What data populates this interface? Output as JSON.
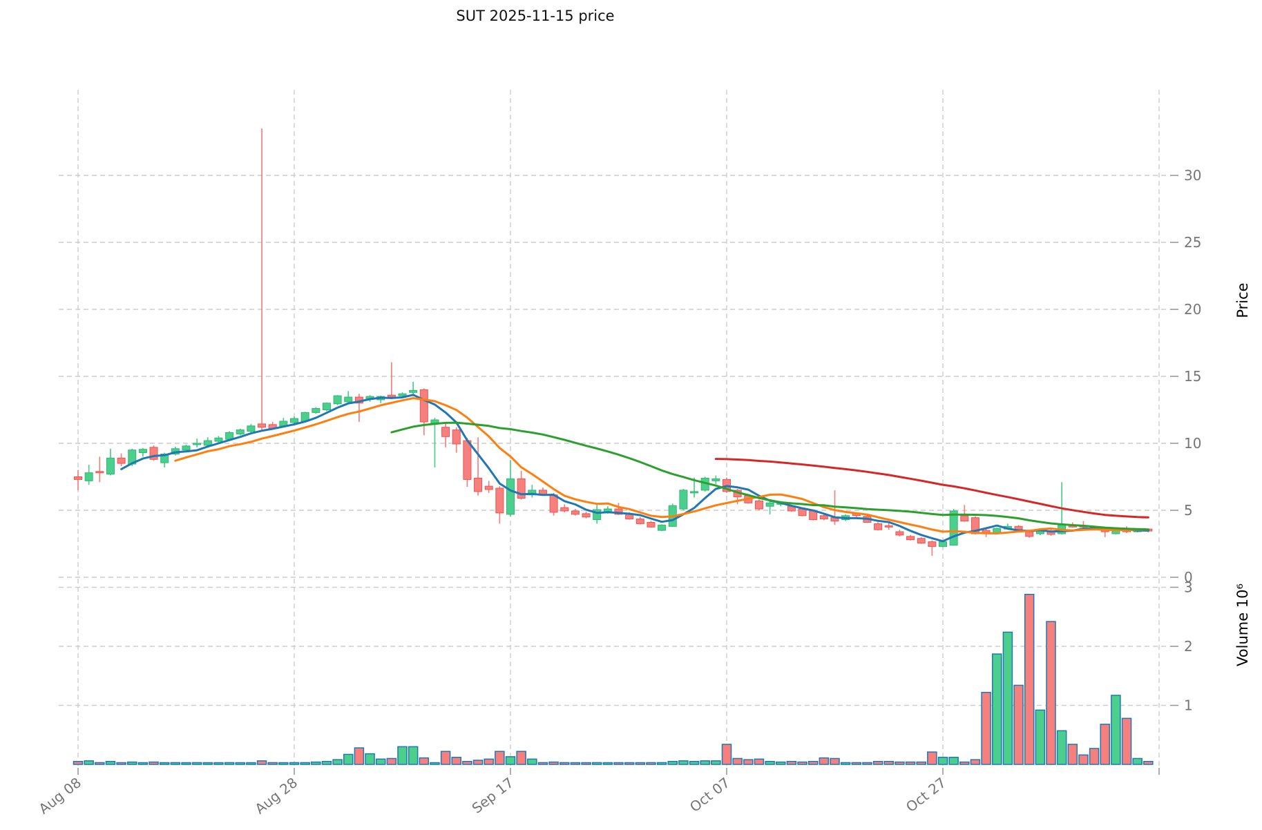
{
  "title": "SUT  2025-11-15  price",
  "chart_data": {
    "type": "candlestick",
    "title": "SUT  2025-11-15  price",
    "x_axis": {
      "tick_labels": [
        "Aug 08",
        "Aug 28",
        "Sep 17",
        "Oct 07",
        "Oct 27"
      ],
      "tick_day_indices": [
        0,
        20,
        40,
        60,
        80
      ],
      "gridline_day_indices": [
        0,
        20,
        40,
        60,
        80,
        100
      ]
    },
    "price_axis": {
      "label": "Price",
      "ticks": [
        0,
        5,
        10,
        15,
        20,
        25,
        30
      ],
      "range": [
        0,
        36
      ]
    },
    "volume_axis": {
      "label": "Volume  10⁶",
      "ticks": [
        1,
        2,
        3
      ],
      "unit": "millions",
      "range": [
        0,
        3.1
      ]
    },
    "legend_position": "none",
    "grid": "dashed",
    "colors": {
      "up_fill": "#4ccf8d",
      "up_stroke": "#2db873",
      "down_fill": "#f5807e",
      "down_stroke": "#ef5350",
      "volume_edge": "#1f77b4",
      "grid": "#cccccc",
      "tick_text": "#757575",
      "title_text": "#111111",
      "ma_colors": [
        "#1f77b4",
        "#ff7f0e",
        "#2ca02c",
        "#d62728"
      ]
    },
    "moving_averages": [
      {
        "name": "SMA5",
        "window": 5
      },
      {
        "name": "SMA10",
        "window": 10
      },
      {
        "name": "SMA30",
        "window": 30
      },
      {
        "name": "SMA60",
        "window": 60
      }
    ],
    "columns": [
      "date",
      "open",
      "high",
      "low",
      "close",
      "volume_millions"
    ],
    "ohlcv": [
      [
        "2025-08-08",
        7.5,
        8.0,
        6.5,
        7.3,
        0.05
      ],
      [
        "2025-08-09",
        7.2,
        8.4,
        6.9,
        7.8,
        0.06
      ],
      [
        "2025-08-10",
        7.9,
        9.0,
        7.1,
        7.85,
        0.03
      ],
      [
        "2025-08-11",
        7.7,
        9.6,
        7.6,
        8.9,
        0.05
      ],
      [
        "2025-08-12",
        8.9,
        9.25,
        8.3,
        8.5,
        0.02
      ],
      [
        "2025-08-13",
        8.45,
        9.6,
        8.3,
        9.5,
        0.04
      ],
      [
        "2025-08-14",
        9.3,
        9.65,
        9.0,
        9.55,
        0.02
      ],
      [
        "2025-08-15",
        9.7,
        9.85,
        8.7,
        8.8,
        0.04
      ],
      [
        "2025-08-16",
        8.55,
        9.3,
        8.2,
        9.2,
        0.02
      ],
      [
        "2025-08-17",
        9.2,
        9.75,
        9.1,
        9.6,
        0.03
      ],
      [
        "2025-08-18",
        9.5,
        9.9,
        9.4,
        9.8,
        0.02
      ],
      [
        "2025-08-19",
        9.9,
        10.35,
        9.7,
        10.0,
        0.03
      ],
      [
        "2025-08-20",
        9.85,
        10.45,
        9.7,
        10.2,
        0.02
      ],
      [
        "2025-08-21",
        10.15,
        10.55,
        10.0,
        10.4,
        0.02
      ],
      [
        "2025-08-22",
        10.3,
        10.9,
        10.2,
        10.8,
        0.03
      ],
      [
        "2025-08-23",
        10.7,
        11.1,
        10.6,
        11.0,
        0.02
      ],
      [
        "2025-08-24",
        10.9,
        11.45,
        10.8,
        11.3,
        0.02
      ],
      [
        "2025-08-25",
        11.45,
        33.5,
        10.95,
        11.2,
        0.06
      ],
      [
        "2025-08-26",
        11.4,
        11.6,
        11.0,
        11.1,
        0.03
      ],
      [
        "2025-08-27",
        11.3,
        11.9,
        11.2,
        11.65,
        0.02
      ],
      [
        "2025-08-28",
        11.55,
        12.0,
        11.45,
        11.85,
        0.03
      ],
      [
        "2025-08-29",
        11.65,
        12.35,
        11.6,
        12.3,
        0.03
      ],
      [
        "2025-08-30",
        12.3,
        12.7,
        12.2,
        12.6,
        0.04
      ],
      [
        "2025-08-31",
        12.5,
        13.05,
        12.4,
        13.0,
        0.05
      ],
      [
        "2025-09-01",
        12.95,
        13.6,
        12.85,
        13.55,
        0.08
      ],
      [
        "2025-09-02",
        13.1,
        13.9,
        13.0,
        13.45,
        0.17
      ],
      [
        "2025-09-03",
        13.45,
        13.7,
        11.6,
        13.0,
        0.28
      ],
      [
        "2025-09-04",
        13.3,
        13.6,
        13.1,
        13.5,
        0.18
      ],
      [
        "2025-09-05",
        13.25,
        13.55,
        13.0,
        13.5,
        0.09
      ],
      [
        "2025-09-06",
        13.6,
        16.05,
        13.3,
        13.45,
        0.1
      ],
      [
        "2025-09-07",
        13.55,
        13.8,
        13.4,
        13.7,
        0.3
      ],
      [
        "2025-09-08",
        13.8,
        14.6,
        13.5,
        13.95,
        0.3
      ],
      [
        "2025-09-09",
        14.0,
        14.1,
        10.6,
        11.6,
        0.11
      ],
      [
        "2025-09-10",
        11.5,
        11.9,
        8.2,
        11.75,
        0.02
      ],
      [
        "2025-09-11",
        11.2,
        11.5,
        9.7,
        10.5,
        0.22
      ],
      [
        "2025-09-12",
        11.0,
        11.2,
        9.3,
        9.95,
        0.12
      ],
      [
        "2025-09-13",
        10.2,
        10.4,
        6.75,
        7.3,
        0.05
      ],
      [
        "2025-09-14",
        7.4,
        10.45,
        6.1,
        6.4,
        0.07
      ],
      [
        "2025-09-15",
        6.8,
        7.2,
        6.3,
        6.55,
        0.09
      ],
      [
        "2025-09-16",
        6.65,
        6.8,
        4.0,
        4.8,
        0.22
      ],
      [
        "2025-09-17",
        4.7,
        8.75,
        4.55,
        7.35,
        0.13
      ],
      [
        "2025-09-18",
        7.35,
        7.95,
        5.8,
        5.9,
        0.22
      ],
      [
        "2025-09-19",
        6.15,
        6.9,
        5.95,
        6.5,
        0.09
      ],
      [
        "2025-09-20",
        6.5,
        6.7,
        6.1,
        6.2,
        0.03
      ],
      [
        "2025-09-21",
        6.15,
        6.3,
        4.6,
        4.85,
        0.04
      ],
      [
        "2025-09-22",
        5.2,
        5.45,
        4.85,
        4.95,
        0.03
      ],
      [
        "2025-09-23",
        4.95,
        5.1,
        4.6,
        4.7,
        0.02
      ],
      [
        "2025-09-24",
        4.75,
        4.9,
        4.4,
        4.5,
        0.02
      ],
      [
        "2025-09-25",
        4.3,
        5.55,
        4.0,
        5.05,
        0.03
      ],
      [
        "2025-09-26",
        4.85,
        5.3,
        4.75,
        5.1,
        0.02
      ],
      [
        "2025-09-27",
        5.1,
        5.55,
        4.65,
        4.7,
        0.02
      ],
      [
        "2025-09-28",
        4.7,
        4.85,
        4.3,
        4.35,
        0.02
      ],
      [
        "2025-09-29",
        4.35,
        4.5,
        3.95,
        4.0,
        0.02
      ],
      [
        "2025-09-30",
        4.1,
        4.2,
        3.7,
        3.75,
        0.03
      ],
      [
        "2025-10-01",
        3.5,
        3.95,
        3.45,
        3.9,
        0.03
      ],
      [
        "2025-10-02",
        3.8,
        5.5,
        3.75,
        5.35,
        0.05
      ],
      [
        "2025-10-03",
        5.1,
        6.6,
        5.0,
        6.5,
        0.06
      ],
      [
        "2025-10-04",
        6.3,
        7.45,
        5.95,
        6.4,
        0.05
      ],
      [
        "2025-10-05",
        6.5,
        7.5,
        6.4,
        7.4,
        0.06
      ],
      [
        "2025-10-06",
        7.2,
        7.6,
        6.95,
        7.35,
        0.06
      ],
      [
        "2025-10-07",
        7.3,
        7.45,
        6.3,
        6.4,
        0.34
      ],
      [
        "2025-10-08",
        6.5,
        6.6,
        5.45,
        6.0,
        0.1
      ],
      [
        "2025-10-09",
        6.1,
        6.2,
        5.5,
        5.55,
        0.08
      ],
      [
        "2025-10-10",
        5.7,
        5.8,
        5.0,
        5.1,
        0.09
      ],
      [
        "2025-10-11",
        5.3,
        5.7,
        4.7,
        5.55,
        0.05
      ],
      [
        "2025-10-12",
        5.45,
        5.65,
        5.3,
        5.55,
        0.04
      ],
      [
        "2025-10-13",
        5.3,
        5.4,
        4.9,
        4.95,
        0.05
      ],
      [
        "2025-10-14",
        5.1,
        5.2,
        4.55,
        4.6,
        0.04
      ],
      [
        "2025-10-15",
        4.95,
        5.0,
        4.25,
        4.3,
        0.05
      ],
      [
        "2025-10-16",
        4.6,
        4.7,
        4.25,
        4.35,
        0.11
      ],
      [
        "2025-10-17",
        4.45,
        6.5,
        3.9,
        4.2,
        0.1
      ],
      [
        "2025-10-18",
        4.3,
        4.7,
        4.2,
        4.6,
        0.03
      ],
      [
        "2025-10-19",
        4.75,
        4.85,
        4.5,
        4.6,
        0.03
      ],
      [
        "2025-10-20",
        4.55,
        4.65,
        4.05,
        4.1,
        0.03
      ],
      [
        "2025-10-21",
        4.0,
        4.1,
        3.5,
        3.55,
        0.05
      ],
      [
        "2025-10-22",
        3.85,
        4.05,
        3.55,
        3.75,
        0.05
      ],
      [
        "2025-10-23",
        3.4,
        3.55,
        3.05,
        3.15,
        0.04
      ],
      [
        "2025-10-24",
        3.05,
        3.15,
        2.75,
        2.8,
        0.04
      ],
      [
        "2025-10-25",
        2.9,
        3.0,
        2.5,
        2.55,
        0.04
      ],
      [
        "2025-10-26",
        2.65,
        2.75,
        1.6,
        2.3,
        0.21
      ],
      [
        "2025-10-27",
        2.3,
        2.75,
        2.25,
        2.65,
        0.12
      ],
      [
        "2025-10-28",
        2.4,
        5.1,
        2.35,
        4.95,
        0.12
      ],
      [
        "2025-10-29",
        4.6,
        5.4,
        4.15,
        4.2,
        0.04
      ],
      [
        "2025-10-30",
        4.45,
        4.55,
        3.2,
        3.25,
        0.08
      ],
      [
        "2025-10-31",
        3.5,
        3.6,
        3.0,
        3.25,
        1.22
      ],
      [
        "2025-11-01",
        3.3,
        3.7,
        3.2,
        3.65,
        1.87
      ],
      [
        "2025-11-02",
        3.6,
        4.0,
        3.55,
        3.8,
        2.24
      ],
      [
        "2025-11-03",
        3.8,
        3.9,
        3.45,
        3.55,
        1.34
      ],
      [
        "2025-11-04",
        3.4,
        3.5,
        2.95,
        3.05,
        2.88
      ],
      [
        "2025-11-05",
        3.25,
        3.55,
        3.15,
        3.5,
        0.92
      ],
      [
        "2025-11-06",
        3.45,
        3.55,
        3.1,
        3.2,
        2.42
      ],
      [
        "2025-11-07",
        3.25,
        7.1,
        3.2,
        3.9,
        0.57
      ],
      [
        "2025-11-08",
        3.9,
        4.1,
        3.7,
        3.75,
        0.34
      ],
      [
        "2025-11-09",
        3.85,
        4.2,
        3.6,
        3.8,
        0.16
      ],
      [
        "2025-11-10",
        3.75,
        3.85,
        3.5,
        3.55,
        0.27
      ],
      [
        "2025-11-11",
        3.6,
        3.7,
        3.0,
        3.4,
        0.68
      ],
      [
        "2025-11-12",
        3.25,
        3.6,
        3.2,
        3.55,
        1.17
      ],
      [
        "2025-11-13",
        3.55,
        3.8,
        3.3,
        3.4,
        0.78
      ],
      [
        "2025-11-14",
        3.4,
        3.65,
        3.35,
        3.6,
        0.1
      ],
      [
        "2025-11-15",
        3.6,
        3.65,
        3.35,
        3.45,
        0.05
      ]
    ]
  }
}
